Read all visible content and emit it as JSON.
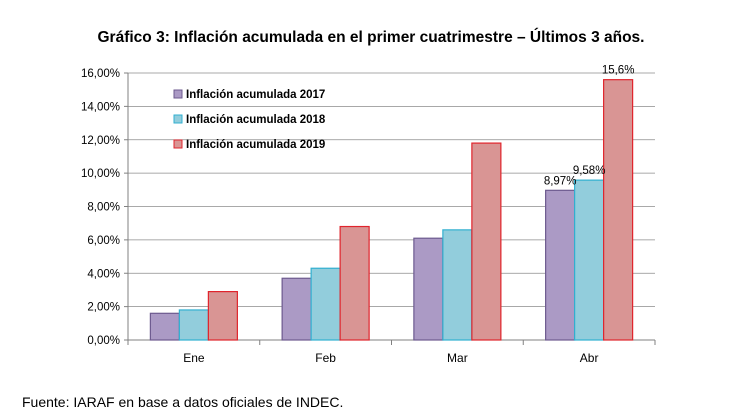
{
  "chart_data": {
    "type": "bar",
    "title": "Gráfico 3: Inflación acumulada en el primer cuatrimestre – Últimos 3 años.",
    "categories": [
      "Ene",
      "Feb",
      "Mar",
      "Abr"
    ],
    "series": [
      {
        "name": "Inflación acumulada 2017",
        "values": [
          1.6,
          3.7,
          6.1,
          8.97
        ],
        "color": "#ab9ac5",
        "stroke": "#6d5a8f"
      },
      {
        "name": "Inflación acumulada 2018",
        "values": [
          1.8,
          4.3,
          6.6,
          9.58
        ],
        "color": "#92cddc",
        "stroke": "#31b0d0"
      },
      {
        "name": "Inflación acumulada 2019",
        "values": [
          2.9,
          6.8,
          11.8,
          15.6
        ],
        "color": "#d99594",
        "stroke": "#e0242c"
      }
    ],
    "data_labels": [
      {
        "series": 0,
        "category": 3,
        "text": "8,97%"
      },
      {
        "series": 1,
        "category": 3,
        "text": "9,58%"
      },
      {
        "series": 2,
        "category": 3,
        "text": "15,6%"
      }
    ],
    "ylim": [
      0,
      16
    ],
    "yticks": [
      {
        "value": 0,
        "label": "0,00%"
      },
      {
        "value": 2,
        "label": "2,00%"
      },
      {
        "value": 4,
        "label": "4,00%"
      },
      {
        "value": 6,
        "label": "6,00%"
      },
      {
        "value": 8,
        "label": "8,00%"
      },
      {
        "value": 10,
        "label": "10,00%"
      },
      {
        "value": 12,
        "label": "12,00%"
      },
      {
        "value": 14,
        "label": "14,00%"
      },
      {
        "value": 16,
        "label": "16,00%"
      }
    ],
    "xlabel": "",
    "ylabel": "",
    "grid": true,
    "legend_position": "top-left"
  },
  "source": "Fuente: IARAF en base a datos oficiales de INDEC."
}
